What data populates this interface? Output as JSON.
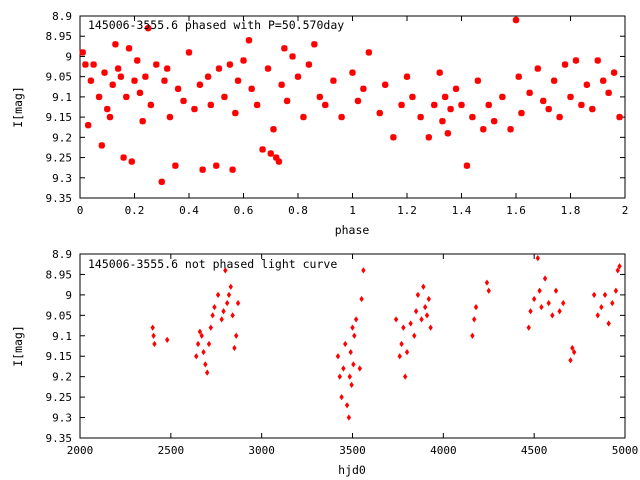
{
  "chart_data": [
    {
      "type": "scatter",
      "title": "145006-3555.6 phased with P=50.570day",
      "xlabel": "phase",
      "ylabel": "I[mag]",
      "xlim": [
        0,
        2
      ],
      "ylim": [
        9.35,
        8.9
      ],
      "y_inverted": true,
      "grid": false,
      "marker_color": "#ff0000",
      "xticks": [
        "0",
        "0.2",
        "0.4",
        "0.6",
        "0.8",
        "1",
        "1.2",
        "1.4",
        "1.6",
        "1.8",
        "2"
      ],
      "yticks": [
        "8.9",
        "8.95",
        "9",
        "9.05",
        "9.1",
        "9.15",
        "9.2",
        "9.25",
        "9.3",
        "9.35"
      ],
      "series": [
        {
          "x": [
            0.01,
            0.02,
            0.03,
            0.04,
            0.05,
            0.07,
            0.08,
            0.09,
            0.1,
            0.11,
            0.12,
            0.13,
            0.14,
            0.15,
            0.16,
            0.17,
            0.18,
            0.19,
            0.2,
            0.21,
            0.22,
            0.23,
            0.24,
            0.25,
            0.26,
            0.28,
            0.3,
            0.31,
            0.32,
            0.33,
            0.35,
            0.36,
            0.38,
            0.4,
            0.42,
            0.44,
            0.45,
            0.47,
            0.48,
            0.5,
            0.51,
            0.53,
            0.55,
            0.56,
            0.57,
            0.58,
            0.6,
            0.62,
            0.63,
            0.65,
            0.67,
            0.69,
            0.7,
            0.71,
            0.72,
            0.73,
            0.74,
            0.75,
            0.76,
            0.78,
            0.8,
            0.82,
            0.84,
            0.86,
            0.88,
            0.9,
            0.93,
            0.96,
            1.0,
            1.02,
            1.04,
            1.06,
            1.1,
            1.12,
            1.15,
            1.18,
            1.2,
            1.22,
            1.25,
            1.28,
            1.3,
            1.32,
            1.33,
            1.34,
            1.35,
            1.36,
            1.38,
            1.4,
            1.42,
            1.44,
            1.46,
            1.48,
            1.5,
            1.52,
            1.55,
            1.58,
            1.6,
            1.61,
            1.62,
            1.65,
            1.68,
            1.7,
            1.72,
            1.74,
            1.76,
            1.78,
            1.8,
            1.82,
            1.84,
            1.86,
            1.88,
            1.9,
            1.92,
            1.94,
            1.96,
            1.98
          ],
          "y": [
            8.99,
            9.02,
            9.17,
            9.06,
            9.02,
            9.1,
            9.22,
            9.04,
            9.13,
            9.15,
            9.07,
            8.97,
            9.03,
            9.05,
            9.25,
            9.1,
            8.98,
            9.26,
            9.06,
            9.01,
            9.09,
            9.16,
            9.05,
            8.93,
            9.12,
            9.02,
            9.31,
            9.06,
            9.03,
            9.15,
            9.27,
            9.08,
            9.11,
            8.99,
            9.13,
            9.07,
            9.28,
            9.05,
            9.12,
            9.27,
            9.03,
            9.1,
            9.02,
            9.28,
            9.14,
            9.06,
            9.01,
            8.96,
            9.08,
            9.12,
            9.23,
            9.03,
            9.24,
            9.18,
            9.25,
            9.26,
            9.07,
            8.98,
            9.11,
            9.0,
            9.05,
            9.15,
            9.02,
            8.97,
            9.1,
            9.12,
            9.06,
            9.15,
            9.04,
            9.11,
            9.08,
            8.99,
            9.14,
            9.07,
            9.2,
            9.12,
            9.05,
            9.1,
            9.15,
            9.2,
            9.12,
            9.04,
            9.16,
            9.1,
            9.19,
            9.13,
            9.08,
            9.12,
            9.27,
            9.15,
            9.06,
            9.18,
            9.12,
            9.16,
            9.1,
            9.18,
            8.91,
            9.05,
            9.14,
            9.09,
            9.03,
            9.11,
            9.13,
            9.06,
            9.15,
            9.02,
            9.1,
            9.01,
            9.12,
            9.07,
            9.13,
            9.01,
            9.06,
            9.09,
            9.04,
            9.15
          ]
        }
      ]
    },
    {
      "type": "scatter",
      "title": "145006-3555.6 not phased light curve",
      "xlabel": "hjd0",
      "ylabel": "I[mag]",
      "xlim": [
        2000,
        5000
      ],
      "ylim": [
        9.35,
        8.9
      ],
      "y_inverted": true,
      "grid": false,
      "marker_color": "#ff0000",
      "xticks": [
        "2000",
        "2500",
        "3000",
        "3500",
        "4000",
        "4500",
        "5000"
      ],
      "yticks": [
        "8.9",
        "8.95",
        "9",
        "9.05",
        "9.1",
        "9.15",
        "9.2",
        "9.25",
        "9.3",
        "9.35"
      ],
      "series": [
        {
          "x": [
            2400,
            2405,
            2410,
            2480,
            2640,
            2650,
            2660,
            2670,
            2680,
            2690,
            2700,
            2710,
            2720,
            2730,
            2740,
            2760,
            2780,
            2790,
            2800,
            2810,
            2820,
            2830,
            2840,
            2850,
            2860,
            2870,
            3420,
            3430,
            3440,
            3450,
            3460,
            3470,
            3480,
            3485,
            3490,
            3495,
            3500,
            3505,
            3510,
            3520,
            3540,
            3550,
            3560,
            3740,
            3760,
            3770,
            3780,
            3790,
            3800,
            3820,
            3840,
            3850,
            3860,
            3880,
            3890,
            3900,
            3910,
            3920,
            3930,
            4160,
            4170,
            4180,
            4240,
            4250,
            4470,
            4480,
            4500,
            4520,
            4530,
            4540,
            4560,
            4580,
            4600,
            4620,
            4640,
            4660,
            4700,
            4710,
            4720,
            4830,
            4850,
            4870,
            4890,
            4910,
            4930,
            4950,
            4960,
            4970
          ],
          "y": [
            9.08,
            9.1,
            9.12,
            9.11,
            9.15,
            9.12,
            9.09,
            9.1,
            9.14,
            9.17,
            9.19,
            9.12,
            9.08,
            9.05,
            9.03,
            9.0,
            9.06,
            9.04,
            8.94,
            9.02,
            9.0,
            8.98,
            9.05,
            9.13,
            9.1,
            9.02,
            9.15,
            9.2,
            9.25,
            9.18,
            9.12,
            9.27,
            9.3,
            9.2,
            9.14,
            9.22,
            9.08,
            9.17,
            9.1,
            9.06,
            9.18,
            9.01,
            8.94,
            9.06,
            9.15,
            9.12,
            9.08,
            9.2,
            9.14,
            9.07,
            9.1,
            9.04,
            9.0,
            9.06,
            8.98,
            9.03,
            9.05,
            9.01,
            9.08,
            9.1,
            9.06,
            9.03,
            8.97,
            8.99,
            9.08,
            9.04,
            9.01,
            8.91,
            8.99,
            9.03,
            8.96,
            9.02,
            9.05,
            8.99,
            9.04,
            9.02,
            9.16,
            9.13,
            9.14,
            9.0,
            9.05,
            9.03,
            9.0,
            9.07,
            9.02,
            8.99,
            8.94,
            8.93
          ]
        }
      ]
    }
  ]
}
